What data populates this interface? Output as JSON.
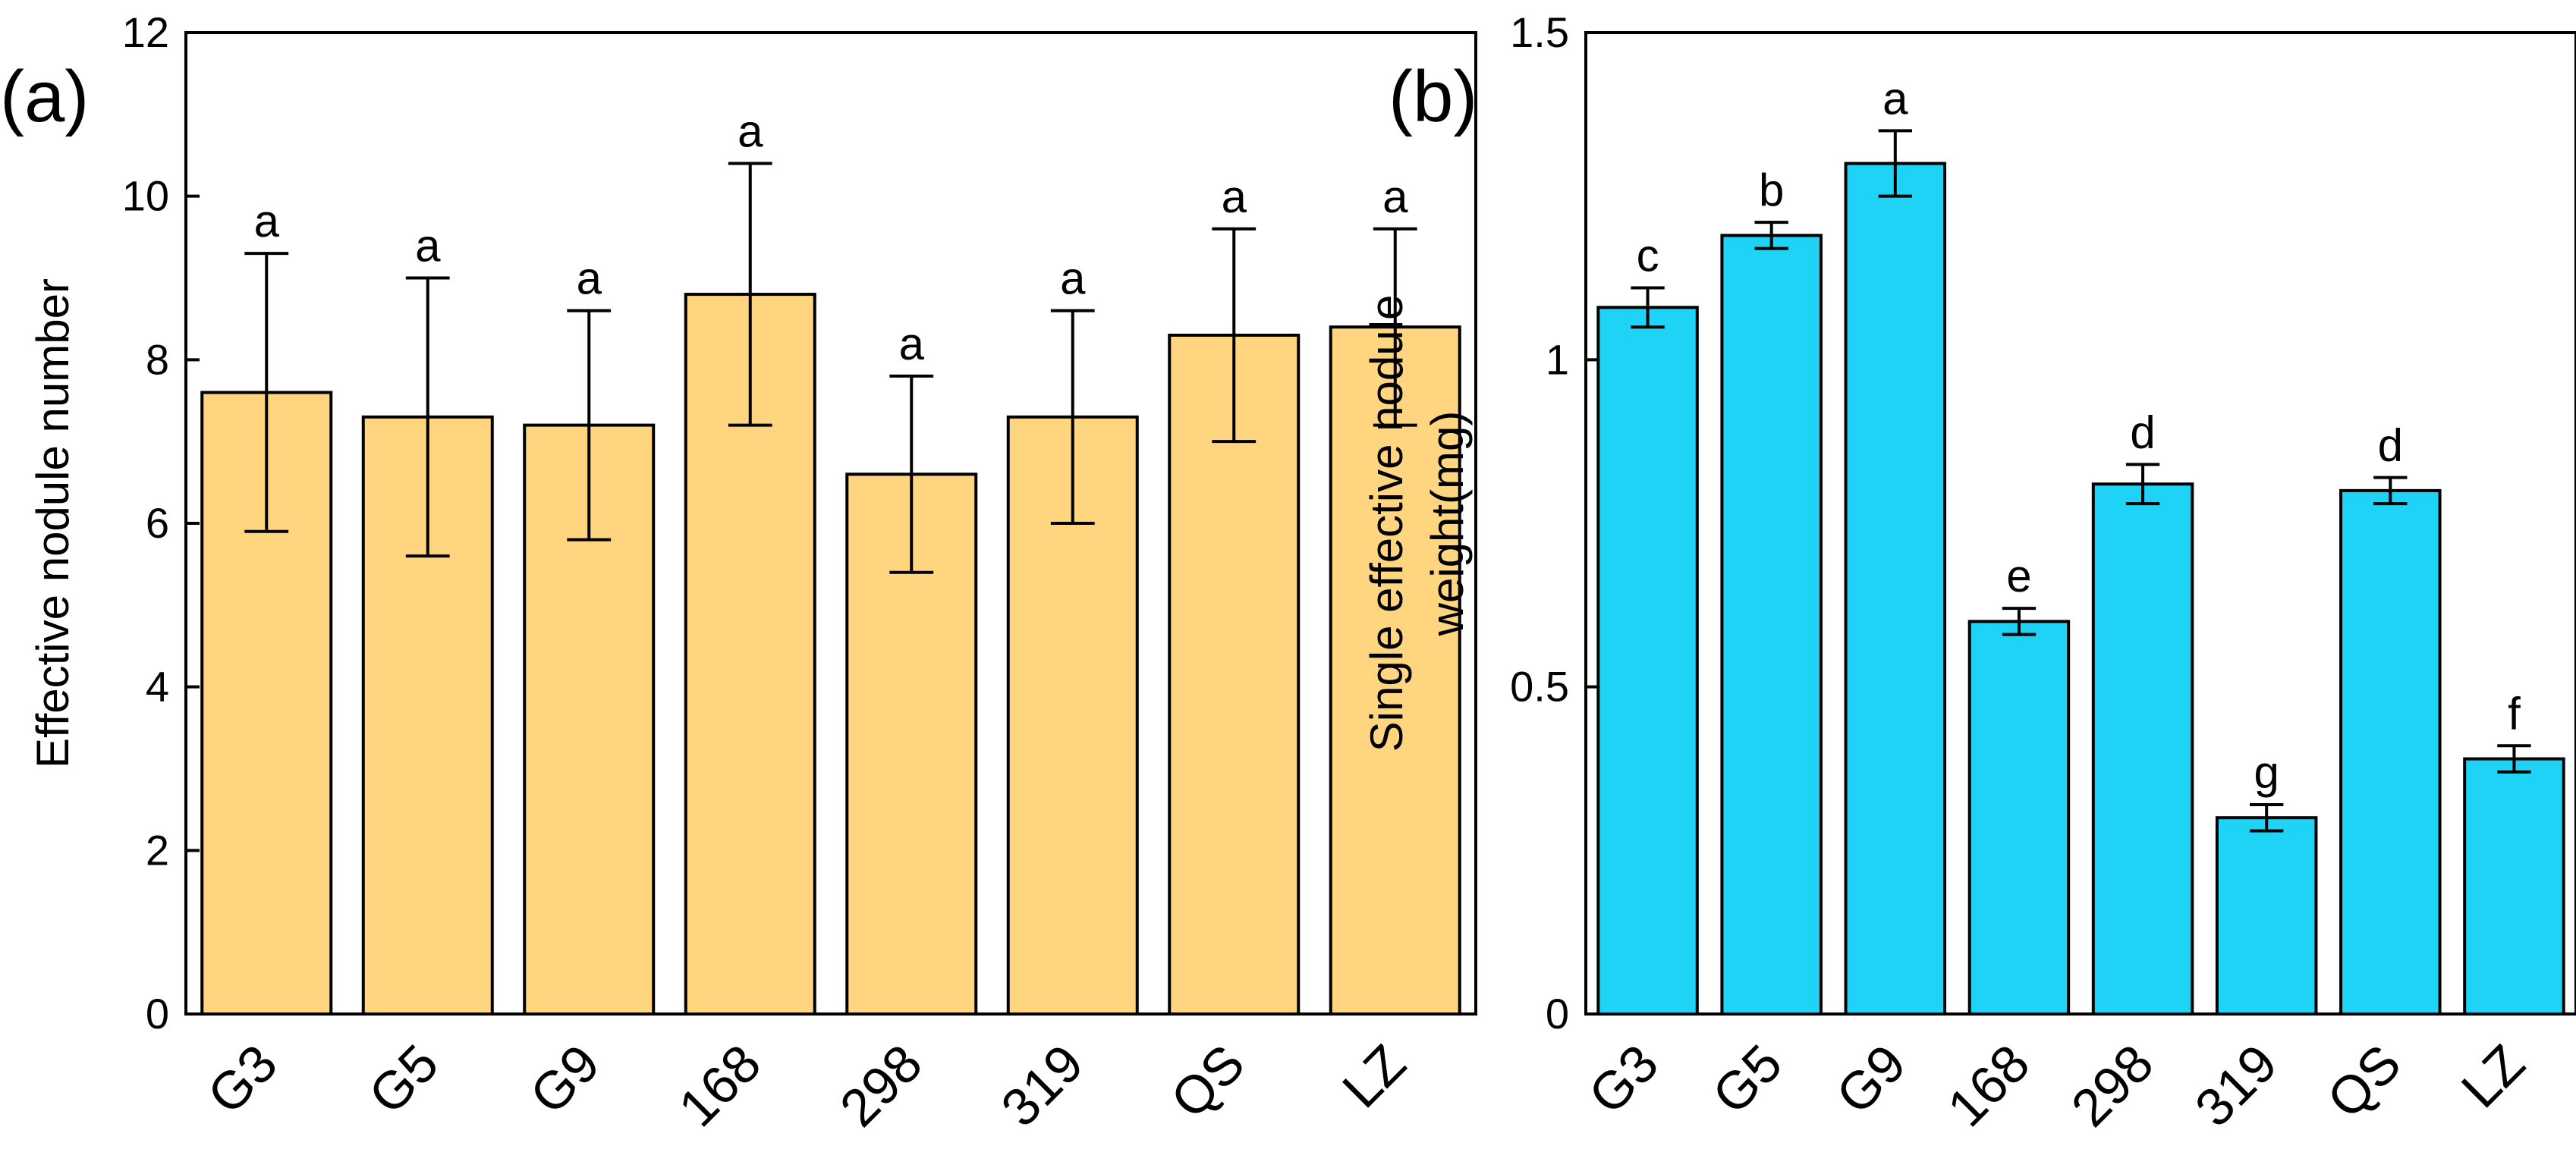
{
  "chart_data": [
    {
      "id": "a",
      "panel_label": "(a)",
      "type": "bar",
      "categories": [
        "G3",
        "G5",
        "G9",
        "168",
        "298",
        "319",
        "QS",
        "LZ"
      ],
      "values": [
        7.6,
        7.3,
        7.2,
        8.8,
        6.6,
        7.3,
        8.3,
        8.4
      ],
      "errors": [
        1.7,
        1.7,
        1.4,
        1.6,
        1.2,
        1.3,
        1.3,
        1.2
      ],
      "significance": [
        "a",
        "a",
        "a",
        "a",
        "a",
        "a",
        "a",
        "a"
      ],
      "ylabel": "Effective nodule number",
      "xlabel": "",
      "ylim": [
        0,
        12
      ],
      "yticks": [
        0,
        2,
        4,
        6,
        8,
        10,
        12
      ],
      "ytick_labels": [
        "0",
        "2",
        "4",
        "6",
        "8",
        "10",
        "12"
      ],
      "bar_color": "#FFD580"
    },
    {
      "id": "b",
      "panel_label": "(b)",
      "type": "bar",
      "categories": [
        "G3",
        "G5",
        "G9",
        "168",
        "298",
        "319",
        "QS",
        "LZ"
      ],
      "values": [
        1.08,
        1.19,
        1.3,
        0.6,
        0.81,
        0.3,
        0.8,
        0.39
      ],
      "errors": [
        0.03,
        0.02,
        0.05,
        0.02,
        0.03,
        0.02,
        0.02,
        0.02
      ],
      "significance": [
        "c",
        "b",
        "a",
        "e",
        "d",
        "g",
        "d",
        "f"
      ],
      "ylabel_lines": [
        "Single effective nodule",
        "weight(mg)"
      ],
      "xlabel": "",
      "ylim": [
        0,
        1.5
      ],
      "yticks": [
        0,
        0.5,
        1,
        1.5
      ],
      "ytick_labels": [
        "0",
        "0.5",
        "1",
        "1.5"
      ],
      "bar_color": "#1ED3F5"
    }
  ]
}
